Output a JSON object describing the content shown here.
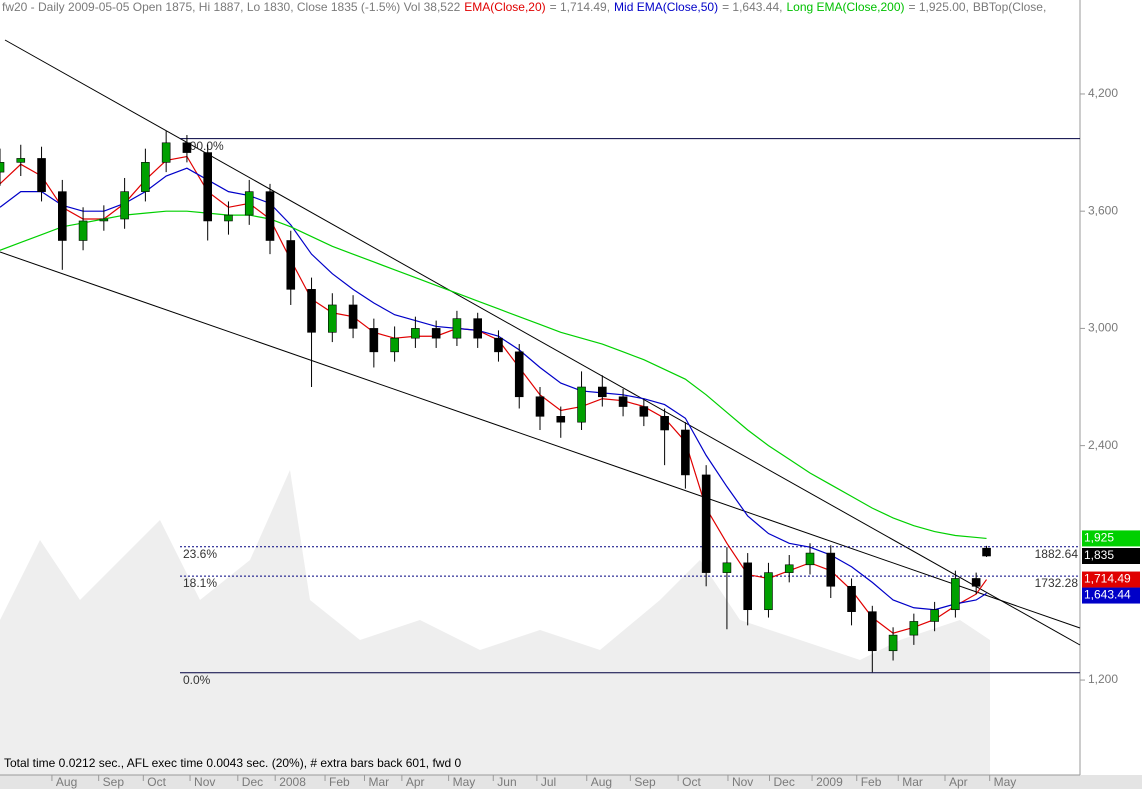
{
  "chart_data": {
    "type": "candlestick",
    "title_parts": [
      {
        "text": "fw20 - Daily 2009-05-05 Open 1875, Hi 1887, Lo 1830, Close 1835 (-1.5%) Vol 38,522",
        "color": "#7a7a7a"
      },
      {
        "text": "EMA(Close,20)",
        "color": "#e00000"
      },
      {
        "text": "= 1,714.49,",
        "color": "#7a7a7a"
      },
      {
        "text": "Mid EMA(Close,50)",
        "color": "#0000c8"
      },
      {
        "text": "= 1,643.44,",
        "color": "#7a7a7a"
      },
      {
        "text": "Long EMA(Close,200)",
        "color": "#00c000"
      },
      {
        "text": "= 1,925.00,",
        "color": "#7a7a7a"
      },
      {
        "text": "BBTop(Close,",
        "color": "#7a7a7a"
      }
    ],
    "footer": "Total time 0.0212 sec., AFL exec time 0.0043 sec. (20%), # extra bars back 601, fwd 0",
    "xlim": [
      0,
      104
    ],
    "xticks": [
      {
        "value": 5.0,
        "label": "Aug"
      },
      {
        "value": 9.5,
        "label": "Sep"
      },
      {
        "value": 13.8,
        "label": "Oct"
      },
      {
        "value": 18.3,
        "label": "Nov"
      },
      {
        "value": 22.9,
        "label": "Dec"
      },
      {
        "value": 26.5,
        "label": "2008"
      },
      {
        "value": 31.3,
        "label": "Feb"
      },
      {
        "value": 35.1,
        "label": "Mar"
      },
      {
        "value": 38.7,
        "label": "Apr"
      },
      {
        "value": 43.2,
        "label": "May"
      },
      {
        "value": 47.5,
        "label": "Jun"
      },
      {
        "value": 51.7,
        "label": "Jul"
      },
      {
        "value": 56.5,
        "label": "Aug"
      },
      {
        "value": 60.7,
        "label": "Sep"
      },
      {
        "value": 65.3,
        "label": "Oct"
      },
      {
        "value": 70.1,
        "label": "Nov"
      },
      {
        "value": 74.1,
        "label": "Dec"
      },
      {
        "value": 78.2,
        "label": "2009"
      },
      {
        "value": 82.5,
        "label": "Feb"
      },
      {
        "value": 86.5,
        "label": "Mar"
      },
      {
        "value": 91.0,
        "label": "Apr"
      },
      {
        "value": 95.3,
        "label": "May"
      }
    ],
    "ylim": [
      714,
      4681
    ],
    "yticks": [
      {
        "value": 1200,
        "label": "1,200"
      },
      {
        "value": 2400,
        "label": "2,400"
      },
      {
        "value": 3000,
        "label": "3,000"
      },
      {
        "value": 3600,
        "label": "3,600"
      },
      {
        "value": 4200,
        "label": "4,200"
      }
    ],
    "candles": {
      "up_color": "#00a000",
      "down_color": "#000000",
      "x": [
        0,
        2,
        4,
        6,
        8,
        10,
        12,
        14,
        16,
        18,
        20,
        22,
        24,
        26,
        28,
        30,
        32,
        34,
        36,
        38,
        40,
        42,
        44,
        46,
        48,
        50,
        52,
        54,
        56,
        58,
        60,
        62,
        64,
        66,
        68,
        70,
        72,
        74,
        76,
        78,
        80,
        82,
        84,
        86,
        88,
        90,
        92,
        94,
        95
      ],
      "open": [
        3800,
        3850,
        3870,
        3700,
        3450,
        3550,
        3560,
        3700,
        3850,
        3950,
        3900,
        3550,
        3580,
        3700,
        3450,
        3200,
        2980,
        3120,
        3000,
        2880,
        2950,
        3000,
        2950,
        3050,
        2950,
        2880,
        2650,
        2550,
        2520,
        2700,
        2650,
        2600,
        2550,
        2480,
        2250,
        1750,
        1800,
        1560,
        1750,
        1790,
        1850,
        1680,
        1550,
        1350,
        1430,
        1500,
        1560,
        1720,
        1875
      ],
      "high": [
        3920,
        3940,
        3930,
        3760,
        3620,
        3630,
        3770,
        3920,
        4010,
        3990,
        3940,
        3650,
        3760,
        3740,
        3500,
        3260,
        3180,
        3170,
        3050,
        3010,
        3060,
        3040,
        3090,
        3080,
        2990,
        2920,
        2700,
        2600,
        2780,
        2760,
        2690,
        2640,
        2590,
        2520,
        2300,
        1880,
        1850,
        1800,
        1840,
        1900,
        1890,
        1720,
        1580,
        1470,
        1540,
        1600,
        1760,
        1750,
        1887
      ],
      "low": [
        3730,
        3780,
        3650,
        3300,
        3400,
        3500,
        3510,
        3650,
        3800,
        3850,
        3450,
        3480,
        3530,
        3380,
        3120,
        2700,
        2930,
        2950,
        2800,
        2830,
        2900,
        2900,
        2910,
        2900,
        2830,
        2590,
        2480,
        2440,
        2480,
        2600,
        2550,
        2500,
        2300,
        2180,
        1680,
        1460,
        1480,
        1520,
        1700,
        1740,
        1620,
        1480,
        1240,
        1300,
        1380,
        1450,
        1520,
        1640,
        1830
      ],
      "close": [
        3850,
        3870,
        3700,
        3450,
        3550,
        3560,
        3700,
        3850,
        3950,
        3900,
        3550,
        3580,
        3700,
        3450,
        3200,
        2980,
        3120,
        3000,
        2880,
        2950,
        3000,
        2950,
        3050,
        2950,
        2880,
        2650,
        2550,
        2520,
        2700,
        2650,
        2600,
        2550,
        2480,
        2250,
        1750,
        1800,
        1560,
        1750,
        1790,
        1850,
        1680,
        1550,
        1350,
        1430,
        1500,
        1560,
        1720,
        1680,
        1835
      ],
      "last_label": "1,835"
    },
    "series": [
      {
        "name": "EMA(Close,20)",
        "color": "#e00000",
        "last_label": "1,714.49",
        "values": [
          3740,
          3840,
          3780,
          3620,
          3560,
          3560,
          3640,
          3760,
          3860,
          3880,
          3700,
          3620,
          3640,
          3560,
          3350,
          3150,
          3080,
          3060,
          2980,
          2950,
          2960,
          2960,
          3000,
          2990,
          2940,
          2800,
          2660,
          2580,
          2600,
          2640,
          2630,
          2600,
          2540,
          2420,
          2080,
          1900,
          1740,
          1720,
          1760,
          1800,
          1760,
          1660,
          1520,
          1440,
          1470,
          1510,
          1580,
          1640,
          1714.49
        ]
      },
      {
        "name": "Mid EMA(Close,50)",
        "color": "#0000c8",
        "last_label": "1,643.44",
        "values": [
          3620,
          3700,
          3700,
          3630,
          3600,
          3600,
          3640,
          3700,
          3780,
          3820,
          3760,
          3700,
          3680,
          3640,
          3530,
          3380,
          3280,
          3200,
          3130,
          3070,
          3040,
          3010,
          3000,
          2990,
          2960,
          2890,
          2800,
          2720,
          2680,
          2670,
          2660,
          2640,
          2610,
          2540,
          2350,
          2190,
          2040,
          1950,
          1900,
          1880,
          1840,
          1780,
          1700,
          1610,
          1570,
          1560,
          1590,
          1610,
          1643.44
        ]
      },
      {
        "name": "Long EMA(Close,200)",
        "color": "#00d000",
        "last_label": "1,925",
        "values": [
          3400,
          3440,
          3480,
          3520,
          3540,
          3560,
          3580,
          3590,
          3600,
          3600,
          3590,
          3580,
          3580,
          3560,
          3520,
          3470,
          3420,
          3380,
          3340,
          3300,
          3260,
          3220,
          3180,
          3140,
          3100,
          3060,
          3020,
          2980,
          2950,
          2920,
          2880,
          2840,
          2790,
          2740,
          2660,
          2570,
          2480,
          2400,
          2330,
          2260,
          2200,
          2140,
          2080,
          2030,
          1990,
          1960,
          1940,
          1930,
          1925
        ]
      }
    ],
    "fib_levels": [
      {
        "label": "100.0%",
        "value": 3971.2,
        "style": "solid"
      },
      {
        "label": "23.6%",
        "value": 1882.64,
        "style": "dashed"
      },
      {
        "label": "18.1%",
        "value": 1732.28,
        "style": "dashed"
      },
      {
        "label": "0.0%",
        "value": 1237.4,
        "style": "solid"
      }
    ]
  }
}
